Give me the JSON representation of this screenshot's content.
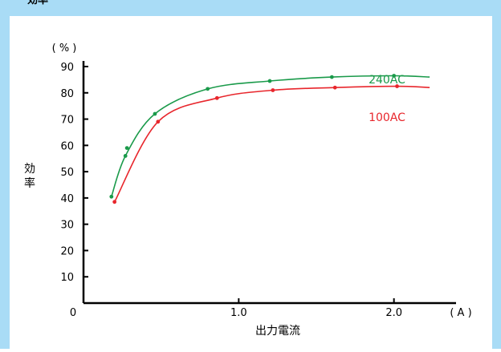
{
  "header": {
    "title": "効率"
  },
  "chart_data": {
    "type": "line",
    "ylabel": "効率",
    "yunit": "( % )",
    "xlabel": "出力電流",
    "xunit": "( A )",
    "xlim": [
      0,
      2.4
    ],
    "ylim": [
      0,
      90
    ],
    "x_ticks": [
      {
        "value": 0,
        "label": "0"
      },
      {
        "value": 1.0,
        "label": "1.0"
      },
      {
        "value": 2.0,
        "label": "2.0"
      }
    ],
    "y_ticks": [
      10,
      20,
      30,
      40,
      50,
      60,
      70,
      80,
      90
    ],
    "series": [
      {
        "name": "240AC",
        "color": "#1a9a4a",
        "points": [
          {
            "x": 0.18,
            "y": 40.5
          },
          {
            "x": 0.27,
            "y": 56
          },
          {
            "x": 0.28,
            "y": 59
          },
          {
            "x": 0.46,
            "y": 72
          },
          {
            "x": 0.8,
            "y": 81.5
          },
          {
            "x": 1.2,
            "y": 84.5
          },
          {
            "x": 1.6,
            "y": 86
          },
          {
            "x": 2.0,
            "y": 86.5
          }
        ],
        "curve_end": {
          "x": 2.23,
          "y": 86
        }
      },
      {
        "name": "100AC",
        "color": "#e8262c",
        "points": [
          {
            "x": 0.2,
            "y": 38.5
          },
          {
            "x": 0.48,
            "y": 69
          },
          {
            "x": 0.86,
            "y": 78
          },
          {
            "x": 1.22,
            "y": 81
          },
          {
            "x": 1.62,
            "y": 82
          },
          {
            "x": 2.02,
            "y": 82.5
          }
        ],
        "curve_end": {
          "x": 2.23,
          "y": 82
        }
      }
    ]
  }
}
